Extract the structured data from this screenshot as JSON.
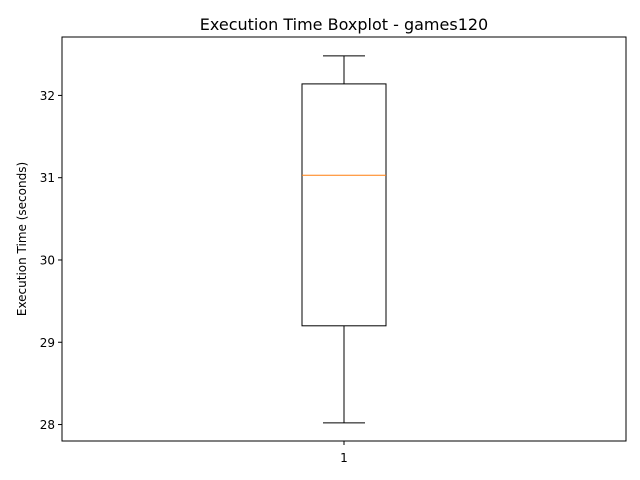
{
  "chart_data": {
    "type": "box",
    "title": "Execution Time Boxplot - games120",
    "xlabel": "",
    "ylabel": "Execution Time (seconds)",
    "categories": [
      "1"
    ],
    "boxes": [
      {
        "category": "1",
        "whisker_low": 28.02,
        "q1": 29.2,
        "median": 31.03,
        "q3": 32.14,
        "whisker_high": 32.48
      }
    ],
    "ylim": [
      27.8,
      32.71
    ],
    "yticks": [
      28,
      29,
      30,
      31,
      32
    ],
    "ytick_labels": [
      "28",
      "29",
      "30",
      "31",
      "32"
    ],
    "xtick_labels": [
      "1"
    ],
    "grid": false,
    "colors": {
      "box": "#000000",
      "median": "#ff7f0e",
      "whisker": "#000000",
      "axes": "#000000"
    }
  }
}
